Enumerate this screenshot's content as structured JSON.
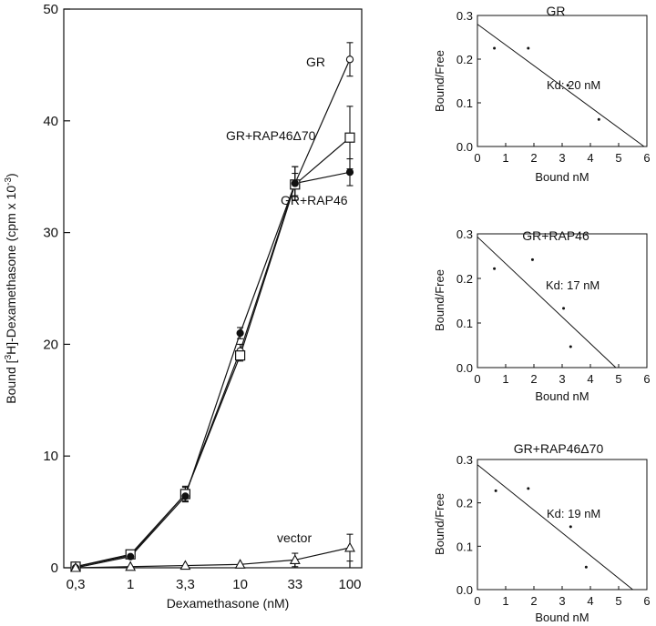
{
  "chart_data": [
    {
      "id": "main",
      "type": "line",
      "title": "",
      "xlabel": "Dexamethasone (nM)",
      "ylabel_prefix": "Bound [",
      "ylabel_sup1": "3",
      "ylabel_mid": "H]-Dexamethasone (cpm x 10",
      "ylabel_sup2": "-3",
      "ylabel_suffix": ")",
      "categories": [
        "0,3",
        "1",
        "3,3",
        "10",
        "33",
        "100"
      ],
      "ylim": [
        0,
        50
      ],
      "yticks": [
        0,
        10,
        20,
        30,
        40,
        50
      ],
      "grid": false,
      "series": [
        {
          "name": "GR",
          "marker": "open-circle",
          "values": [
            0.1,
            1.1,
            6.6,
            19.4,
            34.4,
            45.5
          ],
          "errors": [
            0.2,
            0.3,
            0.6,
            0.6,
            1.5,
            1.5
          ]
        },
        {
          "name": "GR+RAP46Δ70",
          "marker": "open-square",
          "values": [
            0.1,
            1.2,
            6.6,
            19.0,
            34.3,
            38.5
          ],
          "errors": [
            0.2,
            0.3,
            0.7,
            0.5,
            1.0,
            2.8
          ]
        },
        {
          "name": "GR+RAP46",
          "marker": "filled-circle",
          "values": [
            0.0,
            1.0,
            6.4,
            21.0,
            34.4,
            35.4
          ],
          "errors": [
            0.2,
            0.2,
            0.5,
            0.5,
            1.5,
            1.2
          ]
        },
        {
          "name": "vector",
          "marker": "open-triangle",
          "values": [
            0.0,
            0.1,
            0.2,
            0.3,
            0.7,
            1.8
          ],
          "errors": [
            0.1,
            0.1,
            0.1,
            0.2,
            0.6,
            1.2
          ]
        }
      ]
    },
    {
      "id": "scatchard-gr",
      "type": "scatter",
      "title": "GR",
      "xlabel": "Bound nM",
      "ylabel": "Bound/Free",
      "xlim": [
        0,
        6
      ],
      "ylim": [
        0.0,
        0.3
      ],
      "xticks": [
        "0",
        "1",
        "2",
        "3",
        "4",
        "5",
        "6"
      ],
      "yticks": [
        "0.0",
        "0.1",
        "0.2",
        "0.3"
      ],
      "points": [
        {
          "x": 0.6,
          "y": 0.225
        },
        {
          "x": 1.8,
          "y": 0.225
        },
        {
          "x": 3.2,
          "y": 0.14
        },
        {
          "x": 4.3,
          "y": 0.062
        }
      ],
      "fit": {
        "x0": 0,
        "y0": 0.28,
        "x1": 5.9,
        "y1": 0.0
      },
      "annotation": "Kd: 20 nM"
    },
    {
      "id": "scatchard-gr-rap46",
      "type": "scatter",
      "title": "GR+RAP46",
      "xlabel": "Bound nM",
      "ylabel": "Bound/Free",
      "xlim": [
        0,
        6
      ],
      "ylim": [
        0.0,
        0.3
      ],
      "xticks": [
        "0",
        "1",
        "2",
        "3",
        "4",
        "5",
        "6"
      ],
      "yticks": [
        "0.0",
        "0.1",
        "0.2",
        "0.3"
      ],
      "points": [
        {
          "x": 0.6,
          "y": 0.222
        },
        {
          "x": 1.95,
          "y": 0.242
        },
        {
          "x": 3.05,
          "y": 0.133
        },
        {
          "x": 3.3,
          "y": 0.047
        }
      ],
      "fit": {
        "x0": 0,
        "y0": 0.293,
        "x1": 4.9,
        "y1": 0.0
      },
      "annotation": "Kd: 17 nM"
    },
    {
      "id": "scatchard-gr-rap46d70",
      "type": "scatter",
      "title": "GR+RAP46Δ70",
      "xlabel": "Bound nM",
      "ylabel": "Bound/Free",
      "xlim": [
        0,
        6
      ],
      "ylim": [
        0.0,
        0.3
      ],
      "xticks": [
        "0",
        "1",
        "2",
        "3",
        "4",
        "5",
        "6"
      ],
      "yticks": [
        "0.0",
        "0.1",
        "0.2",
        "0.3"
      ],
      "points": [
        {
          "x": 0.65,
          "y": 0.228
        },
        {
          "x": 1.8,
          "y": 0.233
        },
        {
          "x": 3.3,
          "y": 0.145
        },
        {
          "x": 3.85,
          "y": 0.052
        }
      ],
      "fit": {
        "x0": 0,
        "y0": 0.288,
        "x1": 5.5,
        "y1": 0.0
      },
      "annotation": "Kd: 19 nM"
    }
  ]
}
